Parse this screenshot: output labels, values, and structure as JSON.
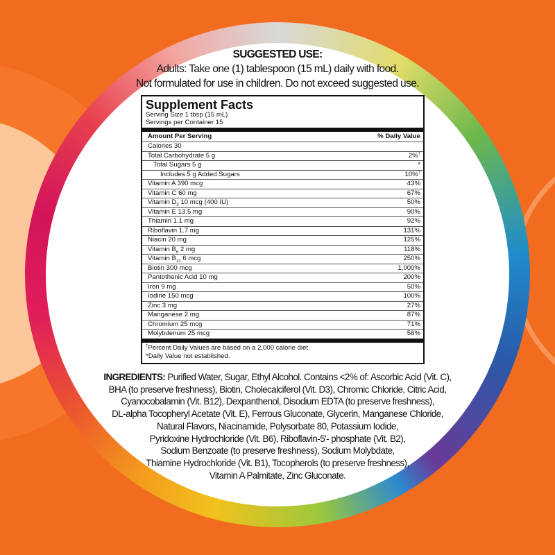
{
  "colors": {
    "background": "#f26c1f",
    "panel": "#ffffff"
  },
  "suggested_use": {
    "title": "SUGGESTED USE:",
    "lines": [
      "Adults: Take one (1) tablespoon (15 mL) daily with food.",
      "Not formulated for use in children. Do not exceed suggested use."
    ]
  },
  "facts": {
    "title": "Supplement Facts",
    "serving_size": "Serving Size 1 tbsp (15 mL)",
    "servings": "Servings per Container 15",
    "header_left": "Amount Per Serving",
    "header_right": "% Daily Value",
    "rows": [
      {
        "name": "Calories 30",
        "dv": ""
      },
      {
        "name": "Total Carbohydrate 5 g",
        "dv": "2%",
        "mark": "†"
      },
      {
        "name": "Total Sugars 5 g",
        "dv": "*",
        "indent": 1
      },
      {
        "name": "Includes 5 g Added Sugars",
        "dv": "10%",
        "mark": "†",
        "indent": 2
      },
      {
        "name": "Vitamin A 390 mcg",
        "dv": "43%"
      },
      {
        "name": "Vitamin C 60 mg",
        "dv": "67%"
      },
      {
        "name": "Vitamin D",
        "subscript": "3",
        "rest": " 10 mcg (400 IU)",
        "dv": "50%"
      },
      {
        "name": "Vitamin E 13.5 mg",
        "dv": "90%"
      },
      {
        "name": "Thiamin 1.1 mg",
        "dv": "92%"
      },
      {
        "name": "Riboflavin 1.7 mg",
        "dv": "131%"
      },
      {
        "name": "Niacin 20 mg",
        "dv": "125%"
      },
      {
        "name": "Vitamin B",
        "subscript": "6",
        "rest": " 2 mg",
        "dv": "118%"
      },
      {
        "name": "Vitamin B",
        "subscript": "12",
        "rest": " 6 mcg",
        "dv": "250%"
      },
      {
        "name": "Biotin 300 mcg",
        "dv": "1,000%"
      },
      {
        "name": "Pantothenic Acid 10 mg",
        "dv": "200%"
      },
      {
        "name": "Iron 9 mg",
        "dv": "50%"
      },
      {
        "name": "Iodine 150 mcg",
        "dv": "100%"
      },
      {
        "name": "Zinc  3 mg",
        "dv": "27%"
      },
      {
        "name": "Manganese 2 mg",
        "dv": "87%"
      },
      {
        "name": "Chromium 25 mcg",
        "dv": "71%"
      },
      {
        "name": "Molybdenum 25 mcg",
        "dv": "56%"
      }
    ],
    "footnote_mark": "†",
    "footnote_1": "Percent Daily Values are based on a 2,000 calorie diet.",
    "footnote_2": "*Daily Value not established."
  },
  "ingredients": {
    "label": "INGREDIENTS:",
    "lines": [
      " Purified Water, Sugar, Ethyl Alcohol. Contains <2% of: Ascorbic Acid (Vit. C),",
      "BHA (to preserve freshness), Biotin, Cholecalciferol (Vit. D3), Chromic Chloride, Citric Acid,",
      "Cyanocobalamin (Vit. B12), Dexpanthenol, Disodium EDTA (to preserve freshness),",
      "DL-alpha Tocopheryl Acetate (Vit. E), Ferrous Gluconate, Glycerin, Manganese Chloride,",
      "Natural Flavors, Niacinamide, Polysorbate 80, Potassium Iodide,",
      "Pyridoxine Hydrochloride (Vit. B6), Riboflavin-5'- phosphate (Vit. B2),",
      "Sodium Benzoate (to preserve freshness), Sodium Molybdate,",
      "Thiamine Hydrochloride (Vit. B1), Tocopherols (to preserve freshness),",
      "Vitamin A Palmitate, Zinc Gluconate."
    ]
  }
}
